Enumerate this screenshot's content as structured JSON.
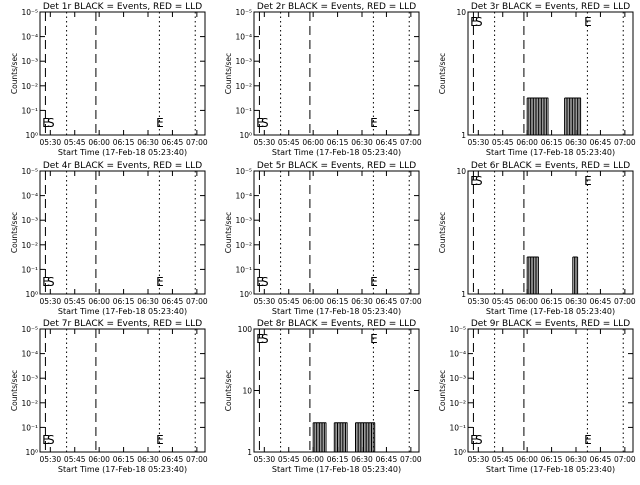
{
  "x_label": "Start Time (17-Feb-18 05:23:40)",
  "x_ticks": [
    "05:30",
    "05:45",
    "06:00",
    "06:15",
    "06:30",
    "06:45",
    "07:00"
  ],
  "y_label": "Counts/sec",
  "colors": {
    "events": "#000000",
    "lld": "#ff0000",
    "frame": "#000000",
    "background": "#ffffff"
  },
  "chart_data": [
    {
      "type": "line",
      "title": "Det 1r BLACK = Events, RED = LLD",
      "y_scale": "log",
      "y_ticks": [
        "10⁰",
        "10⁻¹",
        "10⁻²",
        "10⁻³",
        "10⁻⁴",
        "10⁻⁵"
      ],
      "x_range": [
        "05:23:40",
        "07:05:00"
      ],
      "markers": [
        {
          "label": "E",
          "time": "05:25"
        },
        {
          "label": "S",
          "time": "05:28"
        },
        {
          "label": "E",
          "time": "06:35"
        }
      ],
      "vertical_lines": [
        {
          "style": "dashed",
          "time": "05:27"
        },
        {
          "style": "dotted",
          "time": "05:40"
        },
        {
          "style": "dashed",
          "time": "05:58"
        },
        {
          "style": "dotted",
          "time": "06:37"
        },
        {
          "style": "dotted",
          "time": "06:59"
        }
      ],
      "series": []
    },
    {
      "type": "line",
      "title": "Det 2r BLACK = Events, RED = LLD",
      "y_scale": "log",
      "y_ticks": [
        "10⁰",
        "10⁻¹",
        "10⁻²",
        "10⁻³",
        "10⁻⁴",
        "10⁻⁵"
      ],
      "x_range": [
        "05:23:40",
        "07:05:00"
      ],
      "markers": [
        {
          "label": "E",
          "time": "05:25"
        },
        {
          "label": "S",
          "time": "05:28"
        },
        {
          "label": "E",
          "time": "06:35"
        }
      ],
      "vertical_lines": [
        {
          "style": "dashed",
          "time": "05:27"
        },
        {
          "style": "dotted",
          "time": "05:40"
        },
        {
          "style": "dashed",
          "time": "05:58"
        },
        {
          "style": "dotted",
          "time": "06:37"
        },
        {
          "style": "dotted",
          "time": "06:59"
        }
      ],
      "series": []
    },
    {
      "type": "line",
      "title": "Det 3r BLACK = Events, RED = LLD",
      "y_scale": "log",
      "y_ticks": [
        "1",
        "10"
      ],
      "x_range": [
        "05:23:40",
        "07:05:00"
      ],
      "markers": [
        {
          "label": "E",
          "time": "05:25"
        },
        {
          "label": "S",
          "time": "05:28"
        },
        {
          "label": "E",
          "time": "06:35"
        }
      ],
      "vertical_lines": [
        {
          "style": "dashed",
          "time": "05:27"
        },
        {
          "style": "dotted",
          "time": "05:40"
        },
        {
          "style": "dashed",
          "time": "05:58"
        },
        {
          "style": "dotted",
          "time": "06:37"
        },
        {
          "style": "dotted",
          "time": "06:59"
        }
      ],
      "series": [
        {
          "color": "#000000",
          "band": {
            "low": 1,
            "high": 2
          },
          "active": [
            [
              "06:00",
              "06:13"
            ],
            [
              "06:23",
              "06:33"
            ]
          ]
        }
      ]
    },
    {
      "type": "line",
      "title": "Det 4r BLACK = Events, RED = LLD",
      "y_scale": "log",
      "y_ticks": [
        "10⁰",
        "10⁻¹",
        "10⁻²",
        "10⁻³",
        "10⁻⁴",
        "10⁻⁵"
      ],
      "x_range": [
        "05:23:40",
        "07:05:00"
      ],
      "markers": [
        {
          "label": "E",
          "time": "05:25"
        },
        {
          "label": "S",
          "time": "05:28"
        },
        {
          "label": "E",
          "time": "06:35"
        }
      ],
      "vertical_lines": [
        {
          "style": "dashed",
          "time": "05:27"
        },
        {
          "style": "dotted",
          "time": "05:40"
        },
        {
          "style": "dashed",
          "time": "05:58"
        },
        {
          "style": "dotted",
          "time": "06:37"
        },
        {
          "style": "dotted",
          "time": "06:59"
        }
      ],
      "series": []
    },
    {
      "type": "line",
      "title": "Det 5r BLACK = Events, RED = LLD",
      "y_scale": "log",
      "y_ticks": [
        "10⁰",
        "10⁻¹",
        "10⁻²",
        "10⁻³",
        "10⁻⁴",
        "10⁻⁵"
      ],
      "x_range": [
        "05:23:40",
        "07:05:00"
      ],
      "markers": [
        {
          "label": "E",
          "time": "05:25"
        },
        {
          "label": "S",
          "time": "05:28"
        },
        {
          "label": "E",
          "time": "06:35"
        }
      ],
      "vertical_lines": [
        {
          "style": "dashed",
          "time": "05:27"
        },
        {
          "style": "dotted",
          "time": "05:40"
        },
        {
          "style": "dashed",
          "time": "05:58"
        },
        {
          "style": "dotted",
          "time": "06:37"
        },
        {
          "style": "dotted",
          "time": "06:59"
        }
      ],
      "series": []
    },
    {
      "type": "line",
      "title": "Det 6r BLACK = Events, RED = LLD",
      "y_scale": "log",
      "y_ticks": [
        "1",
        "10"
      ],
      "x_range": [
        "05:23:40",
        "07:05:00"
      ],
      "markers": [
        {
          "label": "E",
          "time": "05:25"
        },
        {
          "label": "S",
          "time": "05:28"
        },
        {
          "label": "E",
          "time": "06:35"
        }
      ],
      "vertical_lines": [
        {
          "style": "dashed",
          "time": "05:27"
        },
        {
          "style": "dotted",
          "time": "05:40"
        },
        {
          "style": "dashed",
          "time": "05:58"
        },
        {
          "style": "dotted",
          "time": "06:37"
        },
        {
          "style": "dotted",
          "time": "06:59"
        }
      ],
      "series": [
        {
          "color": "#000000",
          "band": {
            "low": 1,
            "high": 2
          },
          "active": [
            [
              "06:00",
              "06:07"
            ],
            [
              "06:28",
              "06:31"
            ]
          ]
        }
      ]
    },
    {
      "type": "line",
      "title": "Det 7r BLACK = Events, RED = LLD",
      "y_scale": "log",
      "y_ticks": [
        "10⁰",
        "10⁻¹",
        "10⁻²",
        "10⁻³",
        "10⁻⁴",
        "10⁻⁵"
      ],
      "x_range": [
        "05:23:40",
        "07:05:00"
      ],
      "markers": [
        {
          "label": "E",
          "time": "05:25"
        },
        {
          "label": "S",
          "time": "05:28"
        },
        {
          "label": "E",
          "time": "06:35"
        }
      ],
      "vertical_lines": [
        {
          "style": "dashed",
          "time": "05:27"
        },
        {
          "style": "dotted",
          "time": "05:40"
        },
        {
          "style": "dashed",
          "time": "05:58"
        },
        {
          "style": "dotted",
          "time": "06:37"
        },
        {
          "style": "dotted",
          "time": "06:59"
        }
      ],
      "series": []
    },
    {
      "type": "line",
      "title": "Det 8r BLACK = Events, RED = LLD",
      "y_scale": "log",
      "y_ticks": [
        "1",
        "10",
        "100"
      ],
      "x_range": [
        "05:23:40",
        "07:05:00"
      ],
      "markers": [
        {
          "label": "E",
          "time": "05:25"
        },
        {
          "label": "S",
          "time": "05:28"
        },
        {
          "label": "E",
          "time": "06:35"
        }
      ],
      "vertical_lines": [
        {
          "style": "dashed",
          "time": "05:27"
        },
        {
          "style": "dotted",
          "time": "05:40"
        },
        {
          "style": "dashed",
          "time": "05:58"
        },
        {
          "style": "dotted",
          "time": "06:37"
        },
        {
          "style": "dotted",
          "time": "06:59"
        }
      ],
      "series": [
        {
          "color": "#000000",
          "band": {
            "low": 1,
            "high": 3
          },
          "active": [
            [
              "06:00",
              "06:08"
            ],
            [
              "06:13",
              "06:21"
            ],
            [
              "06:26",
              "06:38"
            ]
          ]
        }
      ]
    },
    {
      "type": "line",
      "title": "Det 9r BLACK = Events, RED = LLD",
      "y_scale": "log",
      "y_ticks": [
        "10⁰",
        "10⁻¹",
        "10⁻²",
        "10⁻³",
        "10⁻⁴",
        "10⁻⁵"
      ],
      "x_range": [
        "05:23:40",
        "07:05:00"
      ],
      "markers": [
        {
          "label": "E",
          "time": "05:25"
        },
        {
          "label": "S",
          "time": "05:28"
        },
        {
          "label": "E",
          "time": "06:35"
        }
      ],
      "vertical_lines": [
        {
          "style": "dashed",
          "time": "05:27"
        },
        {
          "style": "dotted",
          "time": "05:40"
        },
        {
          "style": "dashed",
          "time": "05:58"
        },
        {
          "style": "dotted",
          "time": "06:37"
        },
        {
          "style": "dotted",
          "time": "06:59"
        }
      ],
      "series": []
    }
  ]
}
